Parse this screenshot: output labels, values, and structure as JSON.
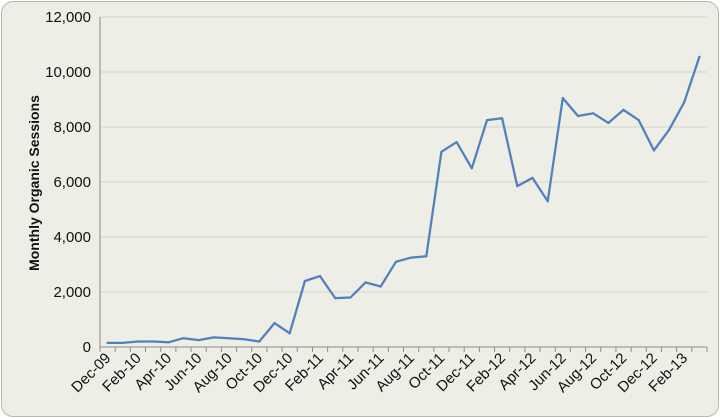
{
  "chart_data": {
    "type": "line",
    "title": "",
    "xlabel": "",
    "ylabel": "Monthly Organic Sessions",
    "ylim": [
      0,
      12000
    ],
    "y_ticks": [
      0,
      2000,
      4000,
      6000,
      8000,
      10000,
      12000
    ],
    "y_tick_labels": [
      "0",
      "2,000",
      "4,000",
      "6,000",
      "8,000",
      "10,000",
      "12,000"
    ],
    "grid": "horizontal",
    "legend": "none",
    "line_color": "#4f81bd",
    "x": [
      "Dec-09",
      "Jan-10",
      "Feb-10",
      "Mar-10",
      "Apr-10",
      "May-10",
      "Jun-10",
      "Jul-10",
      "Aug-10",
      "Sep-10",
      "Oct-10",
      "Nov-10",
      "Dec-10",
      "Jan-11",
      "Feb-11",
      "Mar-11",
      "Apr-11",
      "May-11",
      "Jun-11",
      "Jul-11",
      "Aug-11",
      "Sep-11",
      "Oct-11",
      "Nov-11",
      "Dec-11",
      "Jan-12",
      "Feb-12",
      "Mar-12",
      "Apr-12",
      "May-12",
      "Jun-12",
      "Jul-12",
      "Aug-12",
      "Sep-12",
      "Oct-12",
      "Nov-12",
      "Dec-12",
      "Jan-13",
      "Feb-13",
      "Mar-13"
    ],
    "x_tick_labels": [
      "Dec-09",
      "Feb-10",
      "Apr-10",
      "Jun-10",
      "Aug-10",
      "Oct-10",
      "Dec-10",
      "Feb-11",
      "Apr-11",
      "Jun-11",
      "Aug-11",
      "Oct-11",
      "Dec-11",
      "Feb-12",
      "Apr-12",
      "Jun-12",
      "Aug-12",
      "Oct-12",
      "Dec-12",
      "Feb-13"
    ],
    "series": [
      {
        "values": [
          150,
          150,
          200,
          200,
          170,
          320,
          250,
          350,
          320,
          280,
          200,
          870,
          500,
          2400,
          2580,
          1780,
          1800,
          2350,
          2200,
          3100,
          3250,
          3300,
          7100,
          7450,
          6500,
          8250,
          8320,
          5850,
          6150,
          5300,
          9050,
          8400,
          8500,
          8150,
          8620,
          8250,
          7150,
          7900,
          8900,
          10550
        ]
      }
    ]
  }
}
